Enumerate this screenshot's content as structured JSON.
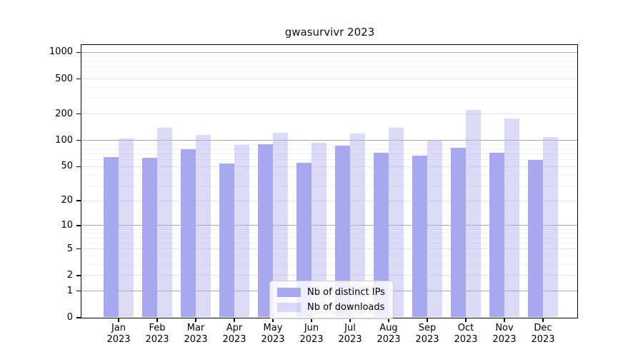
{
  "chart_data": {
    "type": "bar",
    "title": "gwasurvivr 2023",
    "year_label": "2023",
    "categories": [
      "Jan",
      "Feb",
      "Mar",
      "Apr",
      "May",
      "Jun",
      "Jul",
      "Aug",
      "Sep",
      "Oct",
      "Nov",
      "Dec"
    ],
    "series": [
      {
        "name": "Nb of distinct IPs",
        "color": "#a8a8f0",
        "values": [
          64,
          63,
          79,
          54,
          89,
          55,
          86,
          71,
          66,
          82,
          71,
          59
        ]
      },
      {
        "name": "Nb of downloads",
        "color": "rgba(170,170,238,0.42)",
        "values": [
          104,
          139,
          115,
          88,
          122,
          93,
          118,
          139,
          101,
          220,
          175,
          108
        ]
      }
    ],
    "yscale": "log1p",
    "ylim": [
      0,
      1200
    ],
    "yticks": [
      0,
      1,
      2,
      5,
      10,
      20,
      50,
      100,
      200,
      500,
      1000
    ],
    "grid": {
      "major_values": [
        1,
        10,
        100,
        1000
      ],
      "light_values": [
        2,
        5,
        20,
        50,
        200,
        500
      ],
      "minor_values": [
        3,
        4,
        6,
        7,
        8,
        9,
        30,
        40,
        60,
        70,
        80,
        90,
        300,
        400,
        600,
        700,
        800,
        900
      ],
      "major_color": "#aaaaaa",
      "light_color": "#e3e3e7",
      "minor_color": "#f0f0f3"
    },
    "legend_position": "bottom-center",
    "xlabel": "",
    "ylabel": ""
  }
}
